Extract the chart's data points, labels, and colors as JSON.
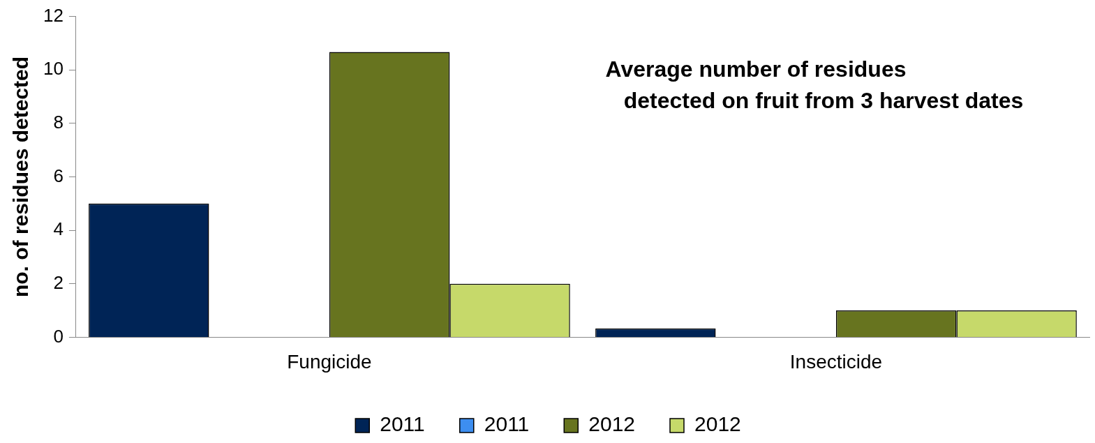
{
  "chart_data": {
    "type": "bar",
    "title": "Average number of residues\ndetected on fruit from 3 harvest dates",
    "ylabel": "no. of residues detected",
    "categories": [
      "Fungicide",
      "Insecticide"
    ],
    "series": [
      {
        "name": "2011",
        "color": "#002456",
        "values": [
          5,
          0.33
        ]
      },
      {
        "name": "2011",
        "color": "#3d8ef0",
        "values": [
          0,
          0
        ]
      },
      {
        "name": "2012",
        "color": "#67741f",
        "values": [
          10.67,
          1
        ]
      },
      {
        "name": "2012",
        "color": "#c6d96a",
        "values": [
          2,
          1
        ]
      }
    ],
    "ylim": [
      0,
      12
    ],
    "yticks": [
      0,
      2,
      4,
      6,
      8,
      10,
      12
    ],
    "grid": false,
    "legend": "bottom"
  }
}
